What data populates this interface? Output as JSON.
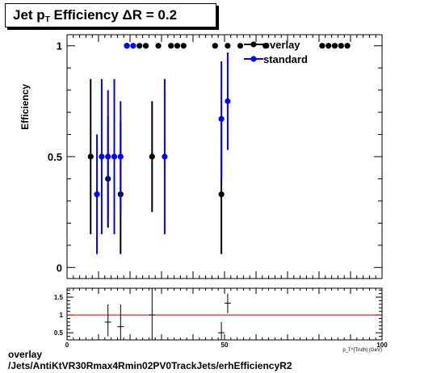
{
  "title": {
    "main": "Jet p",
    "sub": "T",
    "rest": " Efficiency  ΔR = 0.2"
  },
  "footer": {
    "line1": "overlay",
    "line2": "/Jets/AntiKtVR30Rmax4Rmin02PV0TrackJets/erhEfficiencyR2"
  },
  "colors": {
    "overlay": "#000000",
    "standard": "#0000ff",
    "ratio_line": "#cc0000"
  },
  "chart_data": [
    {
      "type": "scatter",
      "ylabel": "Efficiency",
      "xlim": [
        0,
        100
      ],
      "ylim": [
        -0.05,
        1.05
      ],
      "y_ticks": [
        {
          "value": 0,
          "label": "0"
        },
        {
          "value": 0.5,
          "label": "0.5"
        },
        {
          "value": 1,
          "label": "1"
        }
      ],
      "legend_position": "top-right",
      "series": [
        {
          "name": "overlay",
          "points": [
            {
              "x": 7.5,
              "y": 0.5,
              "lo": 0.15,
              "hi": 0.85
            },
            {
              "x": 13,
              "y": 0.4,
              "lo": 0.18,
              "hi": 0.68
            },
            {
              "x": 17,
              "y": 0.33,
              "lo": 0.06,
              "hi": 0.66
            },
            {
              "x": 27,
              "y": 0.5,
              "lo": 0.25,
              "hi": 0.75
            },
            {
              "x": 49,
              "y": 0.33,
              "lo": 0.06,
              "hi": 0.66
            },
            {
              "x": 19,
              "y": 1
            },
            {
              "x": 23,
              "y": 1
            },
            {
              "x": 25,
              "y": 1
            },
            {
              "x": 29,
              "y": 1
            },
            {
              "x": 33,
              "y": 1
            },
            {
              "x": 35,
              "y": 1
            },
            {
              "x": 37,
              "y": 1
            },
            {
              "x": 47,
              "y": 1
            },
            {
              "x": 51,
              "y": 1
            },
            {
              "x": 55,
              "y": 1
            },
            {
              "x": 63,
              "y": 1
            },
            {
              "x": 81,
              "y": 1
            },
            {
              "x": 83,
              "y": 1
            },
            {
              "x": 85,
              "y": 1
            },
            {
              "x": 87,
              "y": 1
            },
            {
              "x": 89,
              "y": 1
            }
          ]
        },
        {
          "name": "standard",
          "points": [
            {
              "x": 9.5,
              "y": 0.33,
              "lo": 0.06,
              "hi": 0.6
            },
            {
              "x": 11,
              "y": 0.5,
              "lo": 0.15,
              "hi": 0.85
            },
            {
              "x": 13,
              "y": 0.5,
              "lo": 0.2,
              "hi": 0.8
            },
            {
              "x": 15,
              "y": 0.5,
              "lo": 0.15,
              "hi": 0.85
            },
            {
              "x": 17,
              "y": 0.5,
              "lo": 0.25,
              "hi": 0.75
            },
            {
              "x": 31,
              "y": 0.5,
              "lo": 0.15,
              "hi": 0.85
            },
            {
              "x": 49,
              "y": 0.67,
              "lo": 0.4,
              "hi": 0.93
            },
            {
              "x": 51,
              "y": 0.75,
              "lo": 0.53,
              "hi": 0.97
            },
            {
              "x": 19,
              "y": 1
            },
            {
              "x": 21,
              "y": 1
            }
          ]
        }
      ]
    },
    {
      "type": "scatter",
      "xlabel": "p_T^{Truth} (GeV)",
      "xlim": [
        0,
        100
      ],
      "ylim": [
        0.3,
        1.75
      ],
      "x_ticks": [
        {
          "value": 0,
          "label": "0"
        },
        {
          "value": 50,
          "label": "50"
        },
        {
          "value": 100,
          "label": "100"
        }
      ],
      "y_ticks": [
        {
          "value": 0.5,
          "label": "0.5"
        },
        {
          "value": 1,
          "label": "1"
        },
        {
          "value": 1.5,
          "label": "1.5"
        }
      ],
      "reference_line": 1,
      "points": [
        {
          "x": 13,
          "y": 0.8,
          "lo": 0.4,
          "hi": 1.3
        },
        {
          "x": 17,
          "y": 0.67,
          "lo": 0.2,
          "hi": 1.3
        },
        {
          "x": 27,
          "y": 1,
          "lo": 0.3,
          "hi": 1.75
        },
        {
          "x": 49,
          "y": 0.5,
          "lo": 0.15,
          "hi": 0.8
        },
        {
          "x": 51,
          "y": 1.33,
          "lo": 1.05,
          "hi": 1.6
        }
      ]
    }
  ]
}
